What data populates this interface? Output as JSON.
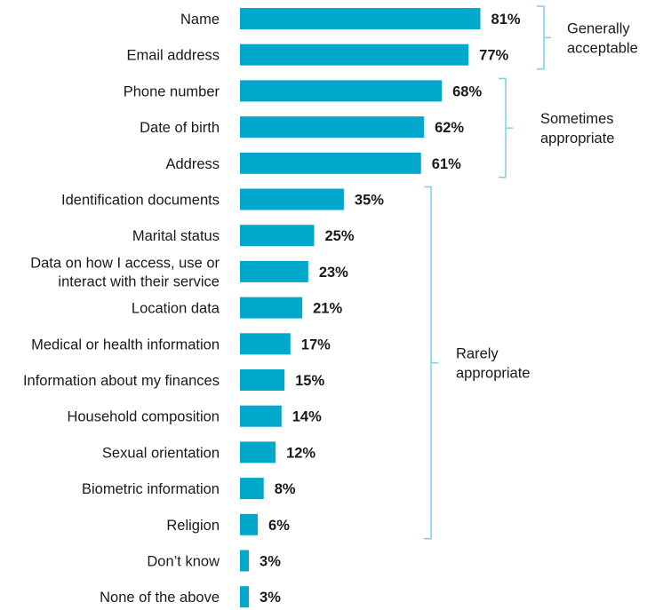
{
  "chart_data": {
    "type": "bar",
    "orientation": "horizontal",
    "bar_color": "#00a8cc",
    "bracket_color": "#7fcfe0",
    "categories": [
      [
        "Name"
      ],
      [
        "Email address"
      ],
      [
        "Phone number"
      ],
      [
        "Date of birth"
      ],
      [
        "Address"
      ],
      [
        "Identification documents"
      ],
      [
        "Marital status"
      ],
      [
        "Data on how I access, use or",
        "interact with their service"
      ],
      [
        "Location data"
      ],
      [
        "Medical or health information"
      ],
      [
        "Information about my finances"
      ],
      [
        "Household composition"
      ],
      [
        "Sexual orientation"
      ],
      [
        "Biometric information"
      ],
      [
        "Religion"
      ],
      [
        "Don’t know"
      ],
      [
        "None of the above"
      ]
    ],
    "values": [
      81,
      77,
      68,
      62,
      61,
      35,
      25,
      23,
      21,
      17,
      15,
      14,
      12,
      8,
      6,
      3,
      3
    ],
    "value_labels": [
      "81%",
      "77%",
      "68%",
      "62%",
      "61%",
      "35%",
      "25%",
      "23%",
      "21%",
      "17%",
      "15%",
      "14%",
      "12%",
      "8%",
      "6%",
      "3%",
      "3%"
    ],
    "groups": [
      {
        "label": [
          "Generally",
          "acceptable"
        ],
        "from": 0,
        "to": 1
      },
      {
        "label": [
          "Sometimes",
          "appropriate"
        ],
        "from": 2,
        "to": 4
      },
      {
        "label": [
          "Rarely",
          "appropriate"
        ],
        "from": 5,
        "to": 14
      }
    ]
  }
}
